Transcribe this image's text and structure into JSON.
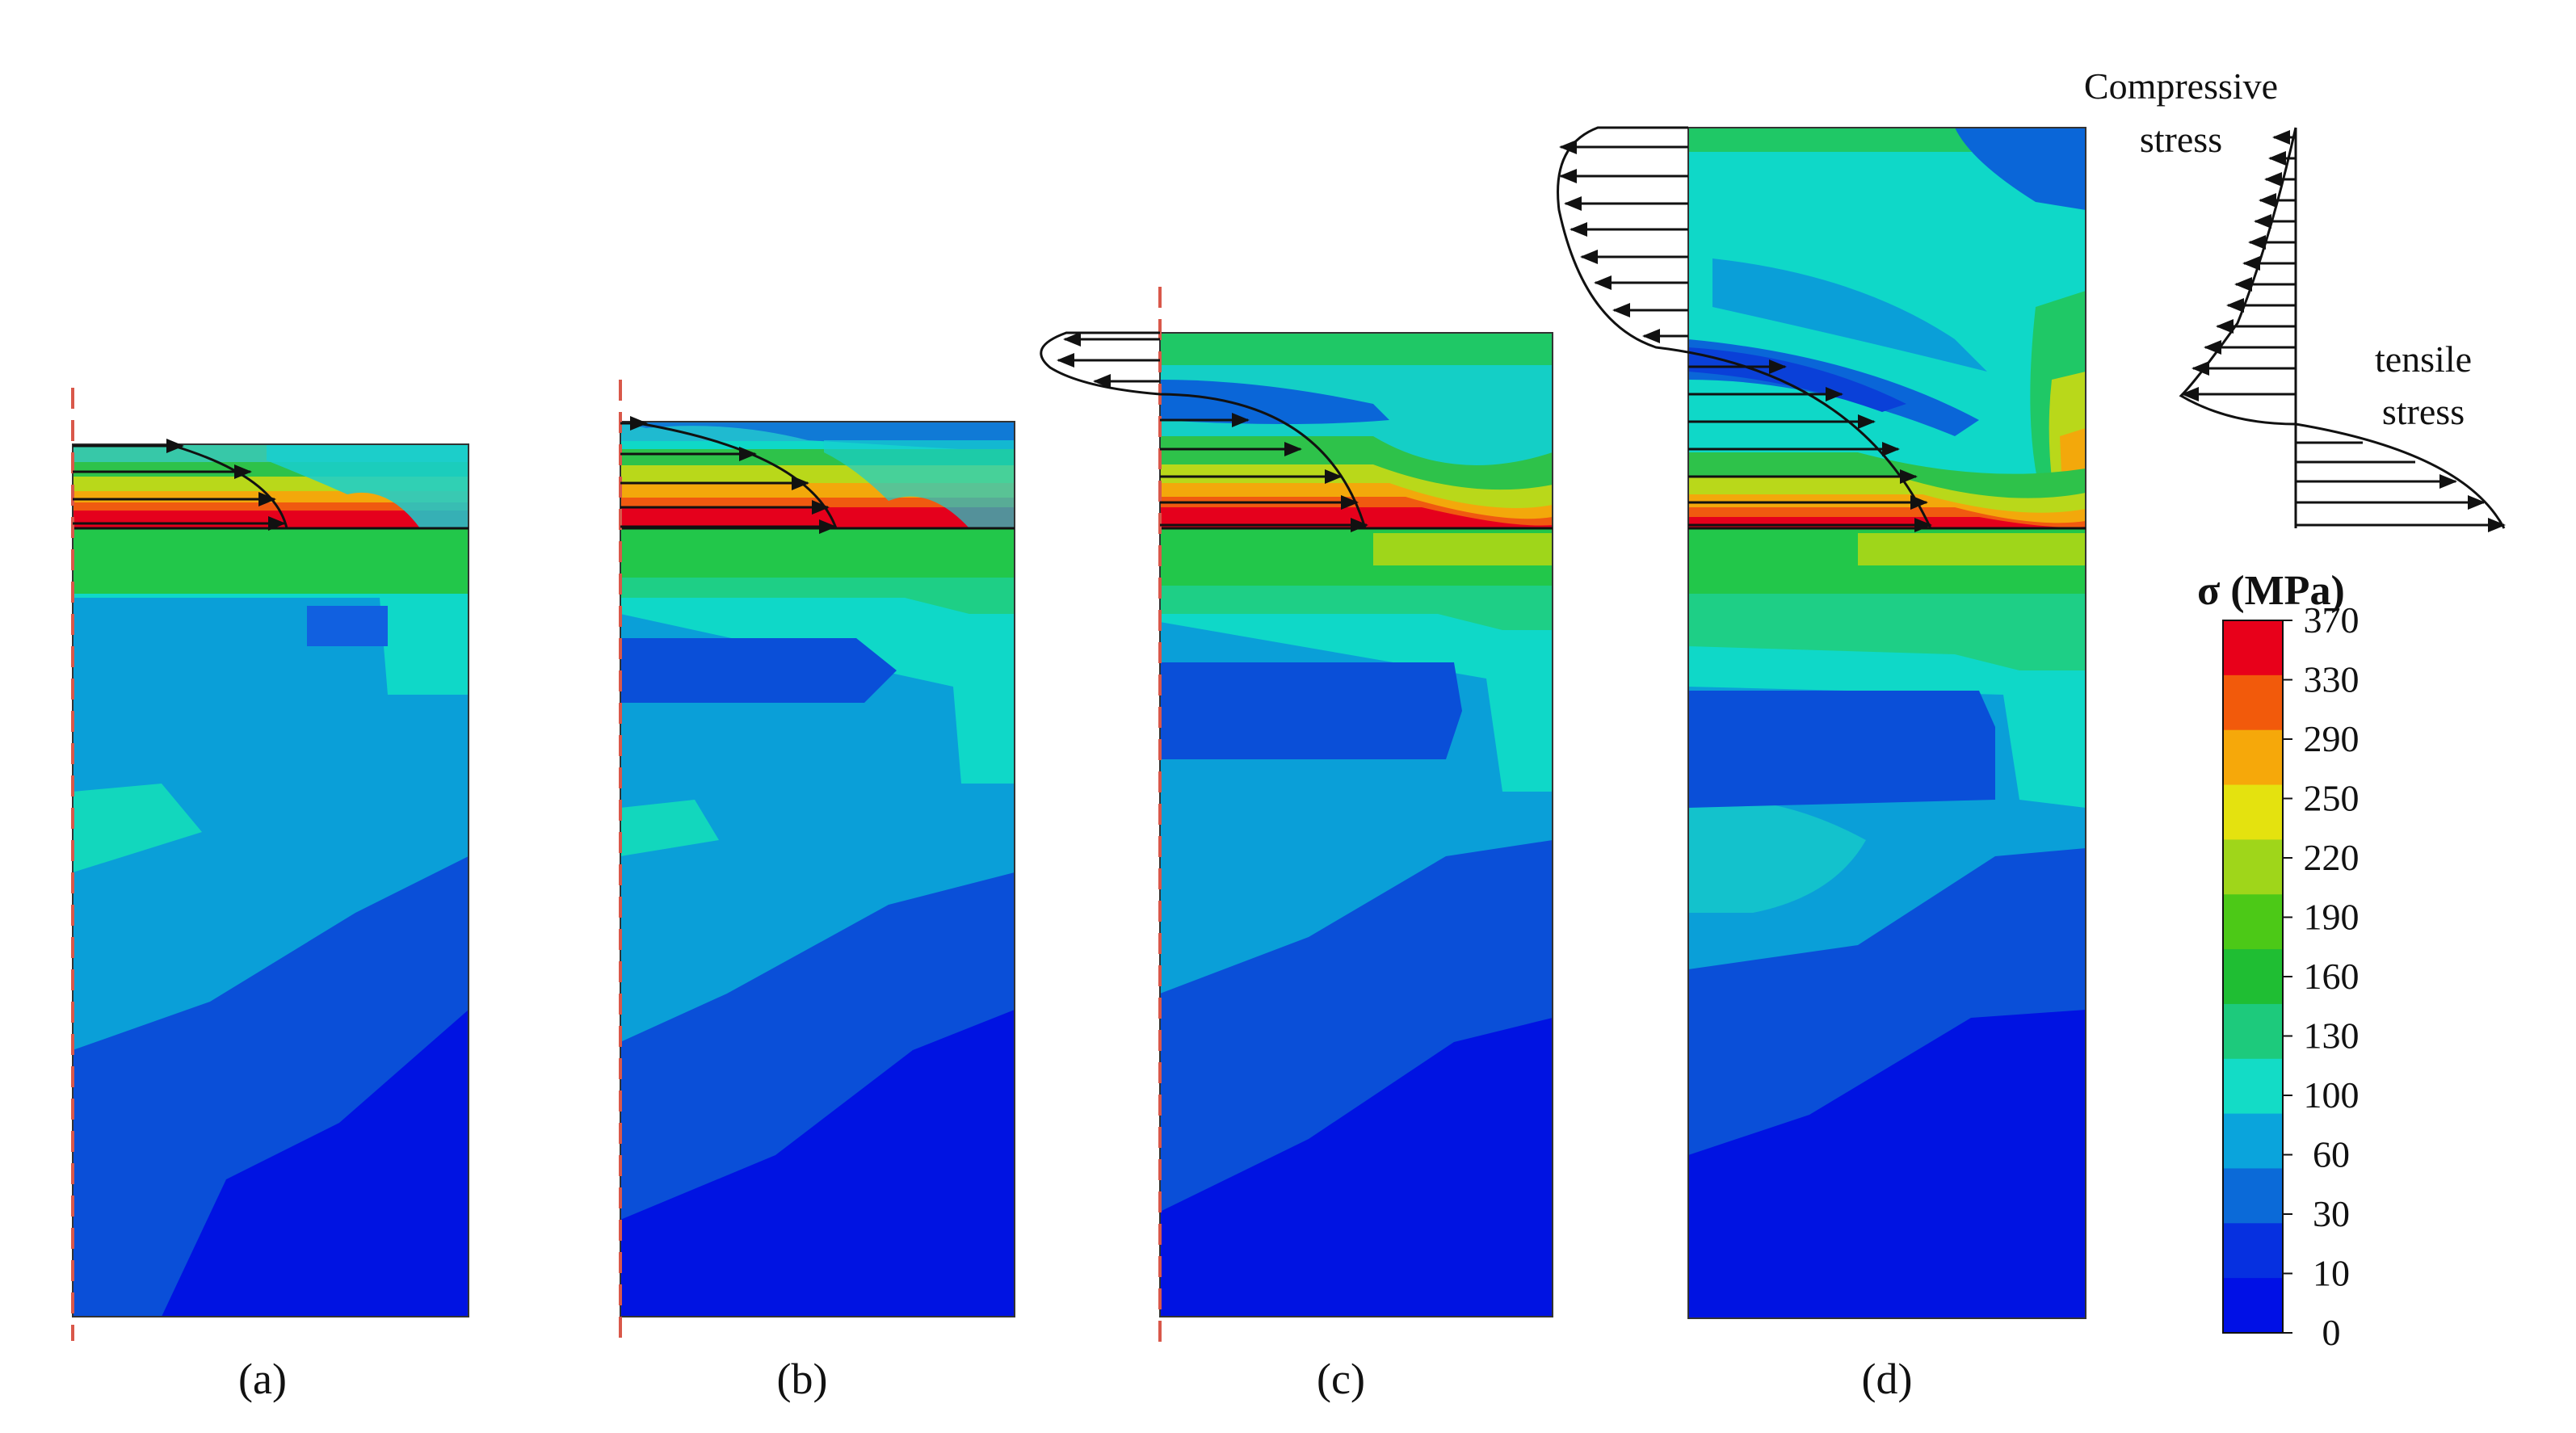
{
  "panels": [
    {
      "label": "(a)"
    },
    {
      "label": "(b)"
    },
    {
      "label": "(c)"
    },
    {
      "label": "(d)"
    }
  ],
  "legend": {
    "compressive_line1": "Compressive",
    "compressive_line2": "stress",
    "tensile_line1": "tensile",
    "tensile_line2": "stress"
  },
  "colorbar": {
    "title": "σ (MPa)",
    "ticks": [
      "370",
      "330",
      "290",
      "250",
      "220",
      "190",
      "160",
      "130",
      "100",
      "60",
      "30",
      "10",
      "0"
    ],
    "colors": [
      "#e8001a",
      "#f25a0b",
      "#f6a80a",
      "#e4e20f",
      "#9fd61a",
      "#4cc917",
      "#1fbe33",
      "#1dca7c",
      "#13dcc6",
      "#0aa4dc",
      "#0b6ad8",
      "#0630e0",
      "#0010e6"
    ]
  }
}
